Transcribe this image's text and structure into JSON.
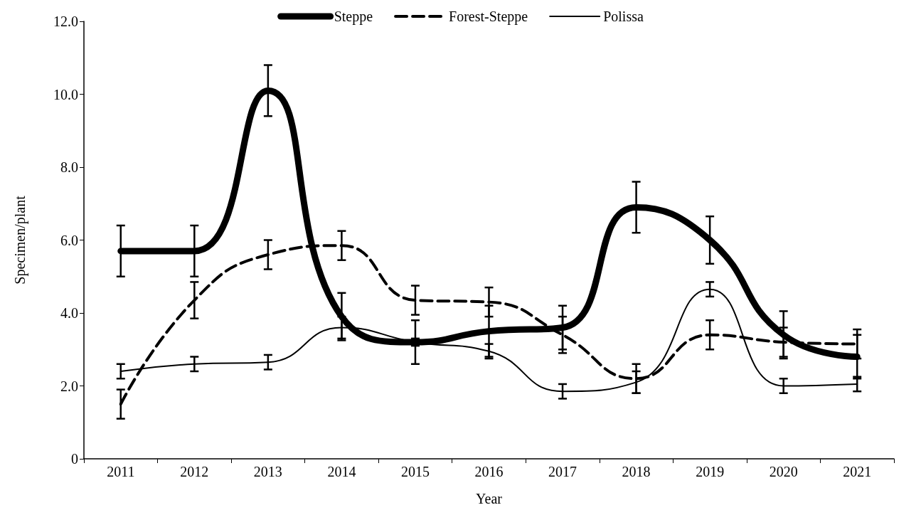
{
  "chart_data": {
    "type": "line",
    "xlabel": "Year",
    "ylabel": "Specimen/plant",
    "categories": [
      "2011",
      "2012",
      "2013",
      "2014",
      "2015",
      "2016",
      "2017",
      "2018",
      "2019",
      "2020",
      "2021"
    ],
    "ylim": [
      0,
      12
    ],
    "yticks": [
      {
        "value": 0,
        "label": "0"
      },
      {
        "value": 2,
        "label": "2.0"
      },
      {
        "value": 4,
        "label": "4.0"
      },
      {
        "value": 6,
        "label": "6.0"
      },
      {
        "value": 8,
        "label": "8.0"
      },
      {
        "value": 10,
        "label": "10.0"
      },
      {
        "value": 12,
        "label": "12.0"
      }
    ],
    "grid": false,
    "legend": "top",
    "marker": "none",
    "series": [
      {
        "name": "Steppe",
        "color": "#000000",
        "line_style": "solid",
        "values": [
          5.7,
          5.7,
          10.1,
          3.9,
          3.2,
          3.5,
          3.6,
          6.9,
          6.0,
          3.4,
          2.8
        ],
        "errors": [
          0.7,
          0.7,
          0.7,
          0.65,
          0.6,
          0.7,
          0.6,
          0.7,
          0.65,
          0.65,
          0.6
        ]
      },
      {
        "name": "Forest-Steppe",
        "color": "#000000",
        "line_style": "dashed",
        "values": [
          1.5,
          4.35,
          5.6,
          5.85,
          4.35,
          4.3,
          3.4,
          2.2,
          3.4,
          3.2,
          3.15
        ],
        "errors": [
          0.4,
          0.5,
          0.4,
          0.4,
          0.4,
          0.4,
          0.5,
          0.4,
          0.4,
          0.4,
          0.4
        ]
      },
      {
        "name": "Polissa",
        "color": "#000000",
        "line_style": "solid",
        "values": [
          2.4,
          2.6,
          2.65,
          3.6,
          3.2,
          2.95,
          1.85,
          2.1,
          4.65,
          2.0,
          2.05
        ],
        "errors": [
          0.2,
          0.2,
          0.2,
          0.3,
          0.1,
          0.2,
          0.2,
          0.3,
          0.2,
          0.2,
          0.2
        ]
      }
    ]
  }
}
